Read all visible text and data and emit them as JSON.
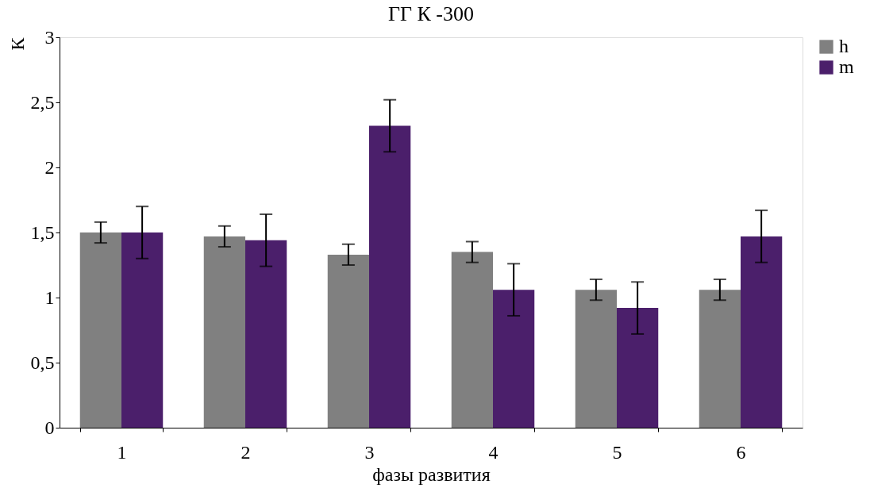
{
  "chart_data": {
    "type": "bar",
    "title": "ГГ К -300",
    "xlabel": "фазы развития",
    "ylabel": "К",
    "categories": [
      "1",
      "2",
      "3",
      "4",
      "5",
      "6"
    ],
    "series": [
      {
        "name": "h",
        "color": "#808080",
        "values": [
          1.5,
          1.47,
          1.33,
          1.35,
          1.06,
          1.06
        ],
        "errors": [
          0.08,
          0.08,
          0.08,
          0.08,
          0.08,
          0.08
        ]
      },
      {
        "name": "m",
        "color": "#4b1f6b",
        "values": [
          1.5,
          1.44,
          2.32,
          1.06,
          0.92,
          1.47
        ],
        "errors": [
          0.2,
          0.2,
          0.2,
          0.2,
          0.2,
          0.2
        ]
      }
    ],
    "ylim": [
      0,
      3
    ],
    "yticks": [
      0,
      {
        "value": 0.5,
        "label": "0,5"
      },
      1,
      {
        "value": 1.5,
        "label": "1,5"
      },
      2,
      {
        "value": 2.5,
        "label": "2,5"
      },
      3
    ],
    "legend": "right",
    "grid": false
  }
}
